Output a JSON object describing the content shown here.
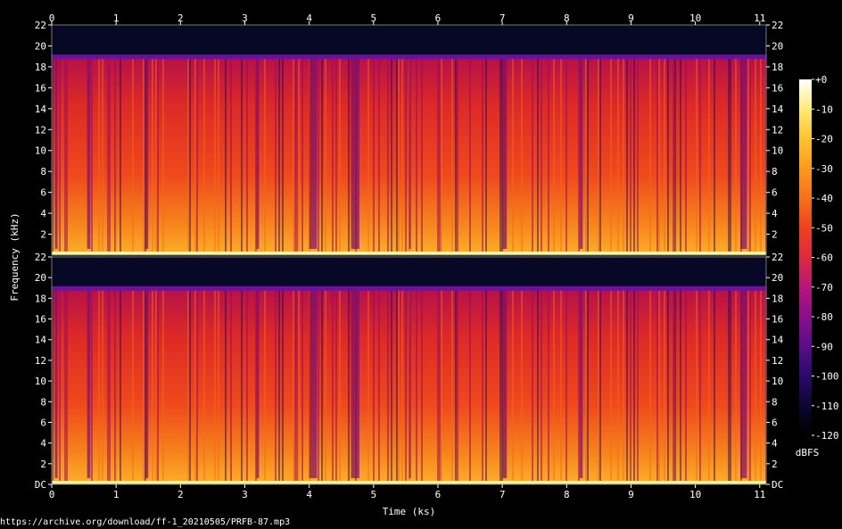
{
  "source_url": "https://archive.org/download/ff-1_20210505/PRFB-87.mp3",
  "chart_data": {
    "type": "heatmap",
    "subtype": "spectrogram",
    "xlabel": "Time (ks)",
    "ylabel": "Frequency (kHz)",
    "xlim": [
      0,
      11.1
    ],
    "ylim": [
      0,
      22
    ],
    "x_ticks": [
      "0",
      "1",
      "2",
      "3",
      "4",
      "5",
      "6",
      "7",
      "8",
      "9",
      "10",
      "11"
    ],
    "y_ticks_top_channel": [
      "2",
      "4",
      "6",
      "8",
      "10",
      "12",
      "14",
      "16",
      "18",
      "20",
      "22"
    ],
    "y_ticks_bottom_channel": [
      "DC",
      "2",
      "4",
      "6",
      "8",
      "10",
      "12",
      "14",
      "16",
      "18",
      "20",
      "22"
    ],
    "channels": 2,
    "lowpass_cutoff_khz": 19,
    "colorbar": {
      "label": "dBFS",
      "range": [
        -120,
        0
      ],
      "ticks": [
        "+0",
        "-10",
        "-20",
        "-30",
        "-40",
        "-50",
        "-60",
        "-70",
        "-80",
        "-90",
        "-100",
        "-110",
        "-120"
      ],
      "colors": [
        "#000000",
        "#0c0630",
        "#2a0a6a",
        "#5a0d8a",
        "#8a0e8a",
        "#b8157a",
        "#dd2a3e",
        "#f1401f",
        "#f8701a",
        "#fb9a1c",
        "#fcc32c",
        "#feeb75",
        "#ffffff"
      ]
    }
  }
}
